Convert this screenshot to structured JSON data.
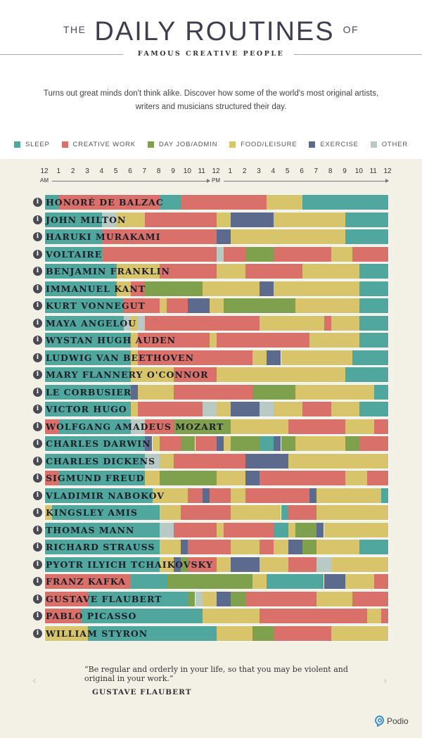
{
  "header": {
    "title_prefix": "THE",
    "title_main": "DAILY ROUTINES",
    "title_suffix": "OF",
    "subtitle": "FAMOUS CREATIVE PEOPLE",
    "intro": "Turns out great minds don't think alike. Discover how some of the world's most original artists, writers and musicians structured their day."
  },
  "legend": [
    {
      "key": "S",
      "label": "SLEEP",
      "color": "#4fa79e"
    },
    {
      "key": "C",
      "label": "CREATIVE WORK",
      "color": "#d9706a"
    },
    {
      "key": "D",
      "label": "DAY JOB/ADMIN",
      "color": "#7fa14e"
    },
    {
      "key": "F",
      "label": "FOOD/LEISURE",
      "color": "#d8c46a"
    },
    {
      "key": "E",
      "label": "EXERCISE",
      "color": "#5c6a8d"
    },
    {
      "key": "O",
      "label": "OTHER",
      "color": "#b9cac4"
    }
  ],
  "chart_data": {
    "type": "bar",
    "orientation": "horizontal-stacked-timeline",
    "x_range": [
      0,
      24
    ],
    "tick_labels": [
      "12",
      "1",
      "2",
      "3",
      "4",
      "5",
      "6",
      "7",
      "8",
      "9",
      "10",
      "11",
      "12",
      "1",
      "2",
      "3",
      "4",
      "5",
      "6",
      "7",
      "8",
      "9",
      "10",
      "11",
      "12"
    ],
    "am_label": "AM",
    "pm_label": "PM",
    "people": [
      {
        "name": "HONORÉ DE BALZAC",
        "segments": [
          [
            "S",
            0,
            1
          ],
          [
            "C",
            1,
            8
          ],
          [
            "S",
            8,
            9.5
          ],
          [
            "C",
            9.5,
            15.5
          ],
          [
            "F",
            15.5,
            18
          ],
          [
            "S",
            18,
            24
          ]
        ]
      },
      {
        "name": "JOHN MILTON",
        "segments": [
          [
            "S",
            0,
            4
          ],
          [
            "O",
            4,
            5
          ],
          [
            "F",
            5,
            7
          ],
          [
            "C",
            7,
            12
          ],
          [
            "F",
            12,
            13
          ],
          [
            "E",
            13,
            16
          ],
          [
            "F",
            16,
            21
          ],
          [
            "S",
            21,
            24
          ]
        ]
      },
      {
        "name": "HARUKI MURAKAMI",
        "segments": [
          [
            "S",
            0,
            4
          ],
          [
            "C",
            4,
            12
          ],
          [
            "E",
            12,
            13
          ],
          [
            "F",
            13,
            21
          ],
          [
            "S",
            21,
            24
          ]
        ]
      },
      {
        "name": "VOLTAIRE",
        "segments": [
          [
            "S",
            0,
            4
          ],
          [
            "C",
            4,
            12
          ],
          [
            "O",
            12,
            12.5
          ],
          [
            "C",
            12.5,
            14
          ],
          [
            "D",
            14,
            16
          ],
          [
            "C",
            16,
            20
          ],
          [
            "F",
            20,
            21.5
          ],
          [
            "C",
            21.5,
            24
          ]
        ]
      },
      {
        "name": "BENJAMIN FRANKLIN",
        "segments": [
          [
            "S",
            0,
            5
          ],
          [
            "F",
            5,
            8
          ],
          [
            "C",
            8,
            12
          ],
          [
            "F",
            12,
            14
          ],
          [
            "C",
            14,
            18
          ],
          [
            "F",
            18,
            22
          ],
          [
            "S",
            22,
            24
          ]
        ]
      },
      {
        "name": "IMMANUEL KANT",
        "segments": [
          [
            "S",
            0,
            5
          ],
          [
            "F",
            5,
            6
          ],
          [
            "C",
            6,
            7
          ],
          [
            "D",
            7,
            11
          ],
          [
            "F",
            11,
            15
          ],
          [
            "E",
            15,
            16
          ],
          [
            "F",
            16,
            22
          ],
          [
            "S",
            22,
            24
          ]
        ]
      },
      {
        "name": "KURT VONNEGUT",
        "segments": [
          [
            "S",
            0,
            5.5
          ],
          [
            "C",
            5.5,
            8
          ],
          [
            "F",
            8,
            8.5
          ],
          [
            "C",
            8.5,
            10
          ],
          [
            "E",
            10,
            11.5
          ],
          [
            "F",
            11.5,
            12.5
          ],
          [
            "D",
            12.5,
            17.5
          ],
          [
            "F",
            17.5,
            22
          ],
          [
            "S",
            22,
            24
          ]
        ]
      },
      {
        "name": "MAYA ANGELOU",
        "segments": [
          [
            "S",
            0,
            5.5
          ],
          [
            "O",
            5.5,
            6
          ],
          [
            "F",
            6,
            6.5
          ],
          [
            "O",
            6.5,
            7
          ],
          [
            "C",
            7,
            15
          ],
          [
            "F",
            15,
            19.5
          ],
          [
            "C",
            19.5,
            20
          ],
          [
            "F",
            20,
            22
          ],
          [
            "S",
            22,
            24
          ]
        ]
      },
      {
        "name": "WYSTAN HUGH AUDEN",
        "segments": [
          [
            "S",
            0,
            6
          ],
          [
            "F",
            6,
            6.5
          ],
          [
            "C",
            6.5,
            11.5
          ],
          [
            "F",
            11.5,
            12
          ],
          [
            "C",
            12,
            18.5
          ],
          [
            "F",
            18.5,
            22
          ],
          [
            "S",
            22,
            24
          ]
        ]
      },
      {
        "name": "LUDWIG VAN BEETHOVEN",
        "segments": [
          [
            "S",
            0,
            6
          ],
          [
            "F",
            6,
            6.5
          ],
          [
            "C",
            6.5,
            14.5
          ],
          [
            "F",
            14.5,
            15.5
          ],
          [
            "E",
            15.5,
            16.5
          ],
          [
            "F",
            16.5,
            21.5
          ],
          [
            "S",
            21.5,
            24
          ]
        ]
      },
      {
        "name": "MARY FLANNERY O'CONNOR",
        "segments": [
          [
            "S",
            0,
            6
          ],
          [
            "F",
            6,
            9
          ],
          [
            "C",
            9,
            12
          ],
          [
            "F",
            12,
            21
          ],
          [
            "S",
            21,
            24
          ]
        ]
      },
      {
        "name": "LE CORBUSIER",
        "segments": [
          [
            "S",
            0,
            6
          ],
          [
            "E",
            6,
            6.5
          ],
          [
            "F",
            6.5,
            9
          ],
          [
            "C",
            9,
            14.5
          ],
          [
            "D",
            14.5,
            17.5
          ],
          [
            "F",
            17.5,
            23
          ],
          [
            "S",
            23,
            24
          ]
        ]
      },
      {
        "name": "VICTOR HUGO",
        "segments": [
          [
            "S",
            0,
            6
          ],
          [
            "F",
            6,
            6.5
          ],
          [
            "C",
            6.5,
            11
          ],
          [
            "O",
            11,
            12
          ],
          [
            "F",
            12,
            13
          ],
          [
            "E",
            13,
            15
          ],
          [
            "O",
            15,
            16
          ],
          [
            "F",
            16,
            18
          ],
          [
            "C",
            18,
            20
          ],
          [
            "F",
            20,
            22
          ],
          [
            "S",
            22,
            24
          ]
        ]
      },
      {
        "name": "WOLFGANG AMADEUS MOZART",
        "segments": [
          [
            "C",
            0,
            1
          ],
          [
            "S",
            1,
            6
          ],
          [
            "O",
            6,
            7
          ],
          [
            "C",
            7,
            9
          ],
          [
            "D",
            9,
            13
          ],
          [
            "F",
            13,
            17
          ],
          [
            "C",
            17,
            21
          ],
          [
            "F",
            21,
            23
          ],
          [
            "C",
            23,
            24
          ]
        ]
      },
      {
        "name": "CHARLES DARWIN",
        "segments": [
          [
            "S",
            0,
            7
          ],
          [
            "E",
            7,
            7.5
          ],
          [
            "F",
            7.5,
            8
          ],
          [
            "C",
            8,
            9.5
          ],
          [
            "D",
            9.5,
            10.5
          ],
          [
            "C",
            10.5,
            12
          ],
          [
            "E",
            12,
            12.5
          ],
          [
            "F",
            12.5,
            13
          ],
          [
            "D",
            13,
            15
          ],
          [
            "S",
            15,
            16
          ],
          [
            "E",
            16,
            16.5
          ],
          [
            "D",
            16.5,
            17.5
          ],
          [
            "F",
            17.5,
            21
          ],
          [
            "D",
            21,
            22
          ],
          [
            "C",
            22,
            24
          ]
        ]
      },
      {
        "name": "CHARLES DICKENS",
        "segments": [
          [
            "S",
            0,
            7
          ],
          [
            "O",
            7,
            8
          ],
          [
            "F",
            8,
            9
          ],
          [
            "C",
            9,
            14
          ],
          [
            "E",
            14,
            17
          ],
          [
            "F",
            17,
            24
          ]
        ]
      },
      {
        "name": "SIGMUND FREUD",
        "segments": [
          [
            "C",
            0,
            1
          ],
          [
            "S",
            1,
            7
          ],
          [
            "F",
            7,
            8
          ],
          [
            "D",
            8,
            12
          ],
          [
            "F",
            12,
            14
          ],
          [
            "E",
            14,
            15
          ],
          [
            "C",
            15,
            21
          ],
          [
            "F",
            21,
            22.5
          ],
          [
            "C",
            22.5,
            24
          ]
        ]
      },
      {
        "name": "VLADIMIR NABOKOV",
        "segments": [
          [
            "S",
            0,
            7.5
          ],
          [
            "F",
            7.5,
            10
          ],
          [
            "C",
            10,
            11
          ],
          [
            "E",
            11,
            11.5
          ],
          [
            "C",
            11.5,
            13
          ],
          [
            "F",
            13,
            14
          ],
          [
            "C",
            14,
            18.5
          ],
          [
            "E",
            18.5,
            19
          ],
          [
            "F",
            19,
            23.5
          ],
          [
            "S",
            23.5,
            24
          ]
        ]
      },
      {
        "name": "KINGSLEY AMIS",
        "segments": [
          [
            "F",
            0,
            0.5
          ],
          [
            "S",
            0.5,
            8
          ],
          [
            "F",
            8,
            9.5
          ],
          [
            "C",
            9.5,
            13
          ],
          [
            "F",
            13,
            16.5
          ],
          [
            "S",
            16.5,
            17
          ],
          [
            "C",
            17,
            19
          ],
          [
            "F",
            19,
            24
          ]
        ]
      },
      {
        "name": "THOMAS MANN",
        "segments": [
          [
            "S",
            0,
            8
          ],
          [
            "O",
            8,
            9
          ],
          [
            "C",
            9,
            12
          ],
          [
            "F",
            12,
            12.5
          ],
          [
            "C",
            12.5,
            16
          ],
          [
            "S",
            16,
            17
          ],
          [
            "F",
            17,
            17.5
          ],
          [
            "D",
            17.5,
            19
          ],
          [
            "E",
            19,
            19.5
          ],
          [
            "F",
            19.5,
            24
          ]
        ]
      },
      {
        "name": "RICHARD STRAUSS",
        "segments": [
          [
            "S",
            0,
            8
          ],
          [
            "F",
            8,
            9.5
          ],
          [
            "E",
            9.5,
            10
          ],
          [
            "C",
            10,
            13
          ],
          [
            "F",
            13,
            15
          ],
          [
            "C",
            15,
            16
          ],
          [
            "F",
            16,
            17
          ],
          [
            "E",
            17,
            18
          ],
          [
            "D",
            18,
            19
          ],
          [
            "F",
            19,
            22
          ],
          [
            "S",
            22,
            24
          ]
        ]
      },
      {
        "name": "PYOTR ILYICH TCHAIKOVSKY",
        "segments": [
          [
            "S",
            0,
            8
          ],
          [
            "F",
            8,
            9
          ],
          [
            "E",
            9,
            9.5
          ],
          [
            "D",
            9.5,
            10
          ],
          [
            "C",
            10,
            12
          ],
          [
            "F",
            12,
            13
          ],
          [
            "E",
            13,
            15
          ],
          [
            "F",
            15,
            17
          ],
          [
            "C",
            17,
            19
          ],
          [
            "O",
            19,
            20
          ],
          [
            "F",
            20,
            24
          ]
        ]
      },
      {
        "name": "FRANZ KAFKA",
        "segments": [
          [
            "C",
            0,
            6
          ],
          [
            "S",
            6,
            8.5
          ],
          [
            "D",
            8.5,
            14.5
          ],
          [
            "F",
            14.5,
            15.5
          ],
          [
            "S",
            15.5,
            19.5
          ],
          [
            "E",
            19.5,
            21
          ],
          [
            "F",
            21,
            23
          ],
          [
            "C",
            23,
            24
          ]
        ]
      },
      {
        "name": "GUSTAVE FLAUBERT",
        "segments": [
          [
            "C",
            0,
            3
          ],
          [
            "S",
            3,
            10
          ],
          [
            "D",
            10,
            10.5
          ],
          [
            "O",
            10.5,
            11
          ],
          [
            "F",
            11,
            12
          ],
          [
            "E",
            12,
            13
          ],
          [
            "D",
            13,
            14
          ],
          [
            "C",
            14,
            19
          ],
          [
            "F",
            19,
            21.5
          ],
          [
            "C",
            21.5,
            24
          ]
        ]
      },
      {
        "name": "PABLO PICASSO",
        "segments": [
          [
            "C",
            0,
            2.5
          ],
          [
            "S",
            2.5,
            11
          ],
          [
            "F",
            11,
            15
          ],
          [
            "C",
            15,
            22.5
          ],
          [
            "F",
            22.5,
            23.5
          ],
          [
            "C",
            23.5,
            24
          ]
        ]
      },
      {
        "name": "WILLIAM STYRON",
        "segments": [
          [
            "F",
            0,
            3
          ],
          [
            "S",
            3,
            12
          ],
          [
            "F",
            12,
            14.5
          ],
          [
            "D",
            14.5,
            16
          ],
          [
            "C",
            16,
            20
          ],
          [
            "F",
            20,
            24
          ]
        ]
      }
    ]
  },
  "quote": {
    "text": "“Be regular and orderly in your life, so that you may be violent and original in your work.”",
    "author": "GUSTAVE FLAUBERT",
    "prev_icon": "chevron-left-icon",
    "next_icon": "chevron-right-icon"
  },
  "brand": {
    "name": "Podio",
    "icon": "podio-logo-icon",
    "color": "#3a8fd0"
  }
}
